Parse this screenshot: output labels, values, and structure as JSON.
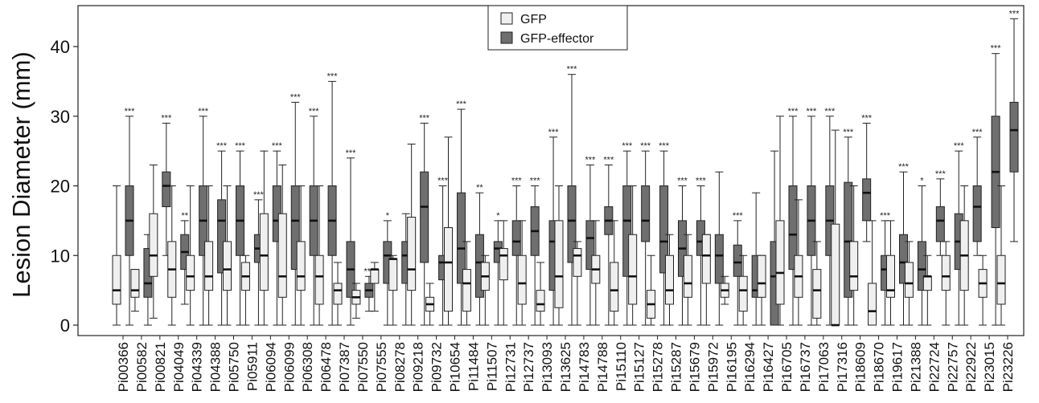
{
  "chart_data": {
    "type": "box",
    "title": "",
    "xlabel": "",
    "ylabel": "Lesion  Diameter (mm)",
    "ylim": [
      0,
      45
    ],
    "yticks": [
      0,
      10,
      20,
      30,
      40
    ],
    "grid": false,
    "legend_position": "top-center",
    "legend": [
      "GFP",
      "GFP-effector"
    ],
    "colors": {
      "GFP": "#efefef",
      "GFP-effector": "#6f6f6f",
      "median": "#111111"
    },
    "categories": [
      "Pi00366",
      "Pi00582",
      "Pi00821",
      "Pi04049",
      "Pi04339",
      "Pi04388",
      "Pi05750",
      "Pi05911",
      "Pi06094",
      "Pi06099",
      "Pi06308",
      "Pi06478",
      "Pi07387",
      "Pi07550",
      "Pi07555",
      "Pi08278",
      "Pi09218",
      "Pi09732",
      "Pi10654",
      "Pi11484",
      "Pi11507",
      "Pi12731",
      "Pi12737",
      "Pi13093",
      "Pi13625",
      "Pi14783",
      "Pi14788",
      "Pi15110",
      "Pi15127",
      "Pi15278",
      "Pi15287",
      "Pi15679",
      "Pi15972",
      "Pi16195",
      "Pi16294",
      "Pi16427",
      "Pi16705",
      "Pi16737",
      "Pi17063",
      "Pi17316",
      "Pi18609",
      "Pi18670",
      "Pi19617",
      "Pi21388",
      "Pi22724",
      "Pi22757",
      "Pi22922",
      "Pi23015",
      "Pi23226"
    ],
    "significance": [
      "***",
      "",
      "***",
      "**",
      "***",
      "***",
      "***",
      "***",
      "***",
      "***",
      "***",
      "***",
      "***",
      "***",
      "*",
      "",
      "***",
      "***",
      "***",
      "**",
      "*",
      "***",
      "***",
      "***",
      "***",
      "***",
      "***",
      "***",
      "***",
      "***",
      "***",
      "***",
      "",
      "***",
      "",
      "",
      "***",
      "***",
      "***",
      "***",
      "***",
      "***",
      "***",
      "*",
      "***",
      "***",
      "***",
      "***",
      "***"
    ],
    "series": [
      {
        "name": "GFP",
        "boxes": [
          [
            0,
            3,
            5,
            10,
            20
          ],
          [
            2,
            4,
            5,
            8,
            8
          ],
          [
            1,
            7,
            10,
            16,
            23
          ],
          [
            0,
            4,
            8,
            12,
            20
          ],
          [
            0,
            5,
            7,
            10,
            20
          ],
          [
            0,
            5,
            7,
            12,
            20
          ],
          [
            0,
            5,
            8,
            12,
            20
          ],
          [
            0,
            5,
            7,
            9,
            10
          ],
          [
            0,
            5,
            10,
            16,
            25
          ],
          [
            0,
            4,
            7,
            16,
            23
          ],
          [
            0,
            5,
            7,
            12,
            20
          ],
          [
            0,
            3,
            7,
            10,
            20
          ],
          [
            0,
            3,
            5,
            6,
            9
          ],
          [
            1,
            3,
            4,
            5,
            6
          ],
          [
            2,
            6,
            8,
            8,
            9
          ],
          [
            0,
            5,
            9.5,
            9.5,
            10
          ],
          [
            0,
            5,
            8,
            15.5,
            26
          ],
          [
            0,
            2,
            3,
            4,
            6
          ],
          [
            0,
            2,
            9,
            14,
            27
          ],
          [
            0,
            2,
            6,
            8,
            12
          ],
          [
            0,
            5,
            7,
            9,
            10
          ],
          [
            0,
            6.5,
            10,
            11,
            15
          ],
          [
            0,
            3,
            6,
            10,
            15
          ],
          [
            0,
            2,
            3,
            5,
            9
          ],
          [
            0,
            2.5,
            7,
            15,
            20
          ],
          [
            0,
            7,
            10,
            11,
            12
          ],
          [
            0,
            6,
            8,
            10,
            15
          ],
          [
            0,
            2,
            5,
            9,
            15
          ],
          [
            0,
            3,
            7,
            13,
            20
          ],
          [
            0,
            1,
            3,
            5,
            10
          ],
          [
            0,
            3,
            5,
            10,
            13
          ],
          [
            0,
            4,
            6,
            10,
            13
          ],
          [
            0,
            6,
            10,
            13,
            13
          ],
          [
            3,
            4,
            5,
            6,
            7
          ],
          [
            0,
            2,
            5,
            7,
            10
          ],
          [
            0,
            4,
            6,
            10,
            10
          ],
          [
            0,
            3,
            7.5,
            15,
            30
          ],
          [
            0,
            4,
            7,
            10,
            18
          ],
          [
            0,
            1,
            5,
            8,
            12
          ],
          [
            0,
            0,
            0,
            14.5,
            28
          ],
          [
            0,
            5,
            7,
            12,
            20
          ],
          [
            0,
            0,
            2,
            6,
            15
          ],
          [
            0,
            4,
            5,
            10,
            15
          ],
          [
            0,
            4,
            6,
            9,
            12
          ],
          [
            0,
            5,
            7,
            7,
            10
          ],
          [
            0,
            5,
            7,
            10,
            12
          ],
          [
            0,
            5,
            10,
            15,
            20
          ],
          [
            0,
            4,
            6,
            8,
            10
          ],
          [
            0,
            3,
            6,
            10,
            20
          ]
        ]
      },
      {
        "name": "GFP-effector",
        "boxes": [
          [
            0,
            10,
            15,
            20,
            30
          ],
          [
            0,
            4,
            6,
            11,
            13
          ],
          [
            10,
            17,
            20,
            22,
            29
          ],
          [
            3,
            8,
            10.5,
            13,
            15
          ],
          [
            0,
            10,
            15,
            20,
            30
          ],
          [
            0,
            7.5,
            15,
            18,
            25
          ],
          [
            0,
            10,
            15,
            20,
            25
          ],
          [
            0,
            9,
            11,
            13,
            18
          ],
          [
            0,
            12,
            15,
            20,
            25
          ],
          [
            0,
            8,
            15,
            20,
            32
          ],
          [
            0,
            10,
            15,
            20,
            30
          ],
          [
            0,
            10,
            15,
            20,
            35
          ],
          [
            0,
            4,
            8,
            12,
            24
          ],
          [
            2,
            4,
            5,
            6,
            7
          ],
          [
            0,
            6,
            10,
            12,
            15
          ],
          [
            0,
            6,
            10,
            12,
            16
          ],
          [
            0,
            9,
            17,
            22,
            29
          ],
          [
            0,
            6.5,
            9,
            10,
            20
          ],
          [
            0,
            6,
            11,
            19,
            31
          ],
          [
            0,
            4,
            9,
            13,
            19
          ],
          [
            0,
            9,
            11,
            12,
            15
          ],
          [
            0,
            10,
            12,
            15,
            20
          ],
          [
            0,
            10,
            13.5,
            17,
            20
          ],
          [
            0,
            5,
            12,
            15,
            27
          ],
          [
            0,
            9,
            15,
            20,
            36
          ],
          [
            0,
            8,
            12.5,
            15,
            23
          ],
          [
            0,
            13,
            15,
            17,
            23
          ],
          [
            0,
            7,
            15,
            20,
            25
          ],
          [
            0,
            12,
            15,
            20,
            25
          ],
          [
            0,
            7.5,
            12,
            20,
            25
          ],
          [
            0,
            7,
            11,
            15,
            20
          ],
          [
            0,
            10,
            12,
            15,
            20
          ],
          [
            0,
            6,
            10,
            13,
            22
          ],
          [
            0,
            7,
            9,
            11.5,
            15
          ],
          [
            0,
            4,
            5,
            10,
            19
          ],
          [
            0,
            0,
            7,
            12,
            25
          ],
          [
            0,
            8,
            13,
            20,
            30
          ],
          [
            0,
            10,
            15,
            20,
            30
          ],
          [
            0,
            10,
            15,
            20,
            30
          ],
          [
            0,
            4,
            12,
            20.5,
            27
          ],
          [
            12,
            15,
            19,
            21,
            29
          ],
          [
            0,
            5,
            8,
            10,
            15
          ],
          [
            0,
            6,
            9,
            13,
            22
          ],
          [
            0,
            5,
            8,
            12,
            20
          ],
          [
            10,
            12,
            15,
            17,
            21
          ],
          [
            0,
            8,
            12,
            16,
            25
          ],
          [
            10,
            12,
            17,
            20,
            27
          ],
          [
            0,
            14,
            22,
            30,
            39
          ],
          [
            12,
            22,
            28,
            32,
            44
          ]
        ]
      }
    ]
  }
}
